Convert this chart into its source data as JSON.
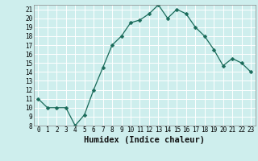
{
  "x": [
    0,
    1,
    2,
    3,
    4,
    5,
    6,
    7,
    8,
    9,
    10,
    11,
    12,
    13,
    14,
    15,
    16,
    17,
    18,
    19,
    20,
    21,
    22,
    23
  ],
  "y": [
    11,
    10,
    10,
    10,
    8,
    9.2,
    12,
    14.5,
    17,
    18,
    19.5,
    19.8,
    20.5,
    21.5,
    20,
    21,
    20.5,
    19,
    18,
    16.5,
    14.7,
    15.5,
    15,
    14
  ],
  "line_color": "#1a6b5a",
  "marker": "D",
  "marker_size": 2.5,
  "bg_color": "#ceeeed",
  "grid_color": "#aadddd",
  "xlabel": "Humidex (Indice chaleur)",
  "ylim": [
    8,
    21.5
  ],
  "xlim": [
    -0.5,
    23.5
  ],
  "yticks": [
    8,
    9,
    10,
    11,
    12,
    13,
    14,
    15,
    16,
    17,
    18,
    19,
    20,
    21
  ],
  "xticks": [
    0,
    1,
    2,
    3,
    4,
    5,
    6,
    7,
    8,
    9,
    10,
    11,
    12,
    13,
    14,
    15,
    16,
    17,
    18,
    19,
    20,
    21,
    22,
    23
  ],
  "tick_fontsize": 5.5,
  "xlabel_fontsize": 7.5,
  "spine_color": "#888888"
}
